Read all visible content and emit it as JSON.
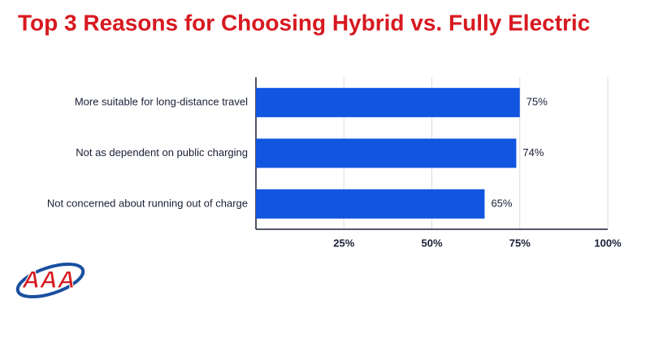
{
  "chart_data": {
    "type": "bar",
    "orientation": "horizontal",
    "title": "Top 3 Reasons for Choosing Hybrid vs. Fully Electric",
    "categories": [
      "More suitable for long-distance travel",
      "Not as dependent on public charging",
      "Not concerned about running out of charge"
    ],
    "values": [
      75,
      74,
      65
    ],
    "value_labels": [
      "75%",
      "74%",
      "65%"
    ],
    "color": "#1155e0",
    "xlim": [
      0,
      100
    ],
    "xticks": [
      {
        "value": 25,
        "label": "25%"
      },
      {
        "value": 50,
        "label": "50%"
      },
      {
        "value": 75,
        "label": "75%"
      },
      {
        "value": 100,
        "label": "100%"
      }
    ],
    "grid": true
  },
  "logo": "AAA"
}
